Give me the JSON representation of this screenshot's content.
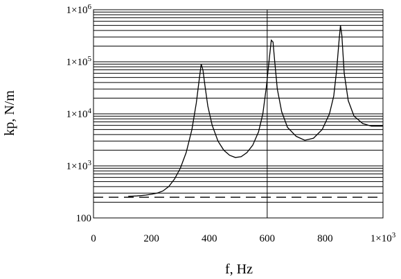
{
  "chart_data": {
    "type": "line",
    "xlabel": "f, Hz",
    "ylabel": "kp, N/m",
    "xlim": [
      0,
      1000
    ],
    "ylim": [
      100,
      1000000
    ],
    "yscale": "log",
    "grid": "horizontal minor lines on log y axis",
    "x_ticks": [
      {
        "value": 0,
        "label": "0"
      },
      {
        "value": 200,
        "label": "200"
      },
      {
        "value": 400,
        "label": "400"
      },
      {
        "value": 600,
        "label": "600"
      },
      {
        "value": 800,
        "label": "800"
      },
      {
        "value": 1000,
        "label": "1×10",
        "sup": "3"
      }
    ],
    "y_ticks": [
      {
        "value": 100,
        "label": "100",
        "sup": ""
      },
      {
        "value": 1000,
        "label": "1×10",
        "sup": "3"
      },
      {
        "value": 10000,
        "label": "1×10",
        "sup": "4"
      },
      {
        "value": 100000,
        "label": "1×10",
        "sup": "5"
      },
      {
        "value": 1000000,
        "label": "1×10",
        "sup": "6"
      }
    ],
    "vertical_marker_x": 600,
    "series": [
      {
        "style": "solid",
        "x": [
          120,
          150,
          180,
          200,
          220,
          240,
          260,
          280,
          300,
          320,
          340,
          355,
          365,
          372,
          378,
          385,
          395,
          410,
          430,
          450,
          470,
          490,
          510,
          530,
          550,
          570,
          585,
          597,
          607,
          614,
          620,
          626,
          635,
          650,
          670,
          700,
          730,
          760,
          790,
          815,
          830,
          840,
          848,
          853,
          858,
          866,
          880,
          900,
          930,
          960,
          1000
        ],
        "y": [
          260,
          265,
          275,
          285,
          300,
          330,
          400,
          560,
          900,
          1800,
          5000,
          16000,
          45000,
          90000,
          70000,
          35000,
          14000,
          6000,
          3000,
          2000,
          1600,
          1450,
          1500,
          1800,
          2500,
          4500,
          10000,
          32000,
          110000,
          260000,
          240000,
          100000,
          30000,
          11000,
          5500,
          3700,
          3100,
          3400,
          5000,
          10000,
          22000,
          70000,
          250000,
          500000,
          320000,
          60000,
          18000,
          9000,
          6500,
          5800,
          5800
        ]
      },
      {
        "style": "dashed",
        "x": [
          0,
          1000
        ],
        "y": [
          250,
          250
        ]
      }
    ]
  }
}
